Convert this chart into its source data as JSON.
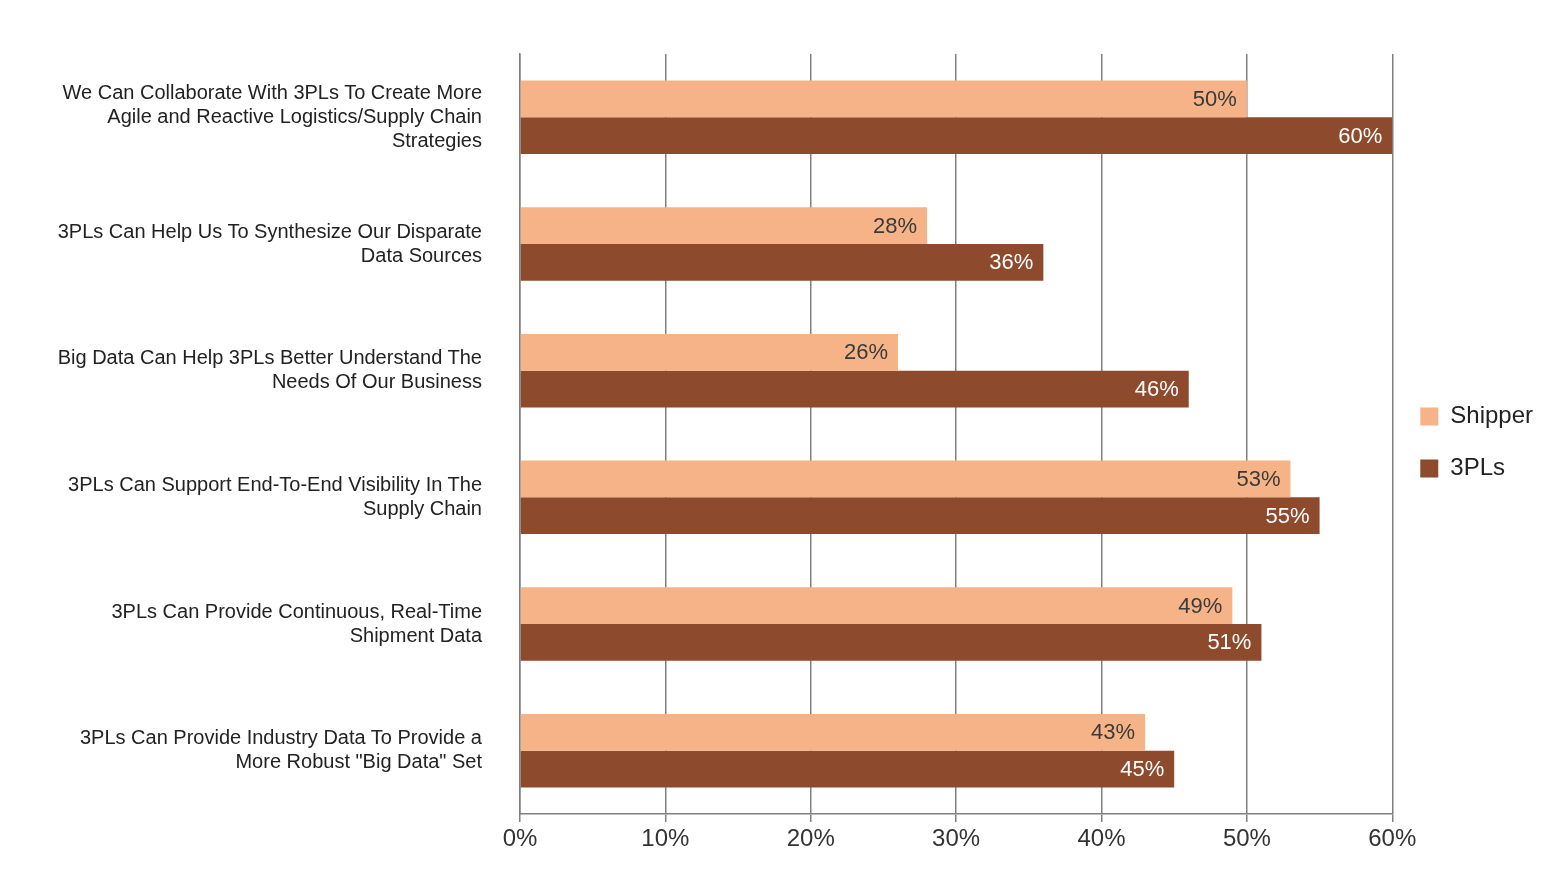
{
  "chart_data": {
    "type": "bar",
    "orientation": "horizontal",
    "categories": [
      "We Can Collaborate With 3PLs To Create More Agile and Reactive Logistics/Supply Chain Strategies",
      "3PLs Can Help Us To Synthesize Our Disparate Data Sources",
      "Big Data Can Help 3PLs Better Understand The Needs Of Our Business",
      "3PLs Can Support End-To-End Visibility In The Supply Chain",
      "3PLs Can Provide Continuous, Real-Time Shipment Data",
      "3PLs Can Provide Industry Data To Provide a More Robust \"Big Data\" Set"
    ],
    "series": [
      {
        "name": "Shipper",
        "color": "#f5b387",
        "values": [
          50,
          28,
          26,
          53,
          49,
          43
        ],
        "value_labels": [
          "50%",
          "28%",
          "26%",
          "53%",
          "49%",
          "43%"
        ]
      },
      {
        "name": "3PLs",
        "color": "#8e4a2d",
        "values": [
          60,
          36,
          46,
          55,
          51,
          45
        ],
        "value_labels": [
          "60%",
          "36%",
          "46%",
          "55%",
          "51%",
          "45%"
        ]
      }
    ],
    "xlim": [
      0,
      60
    ],
    "xticks": [
      {
        "value": 0,
        "label": "0%"
      },
      {
        "value": 10,
        "label": "10%"
      },
      {
        "value": 20,
        "label": "20%"
      },
      {
        "value": 30,
        "label": "30%"
      },
      {
        "value": 40,
        "label": "40%"
      },
      {
        "value": 50,
        "label": "50%"
      },
      {
        "value": 60,
        "label": "60%"
      }
    ],
    "grid": "x",
    "legend": "right"
  }
}
